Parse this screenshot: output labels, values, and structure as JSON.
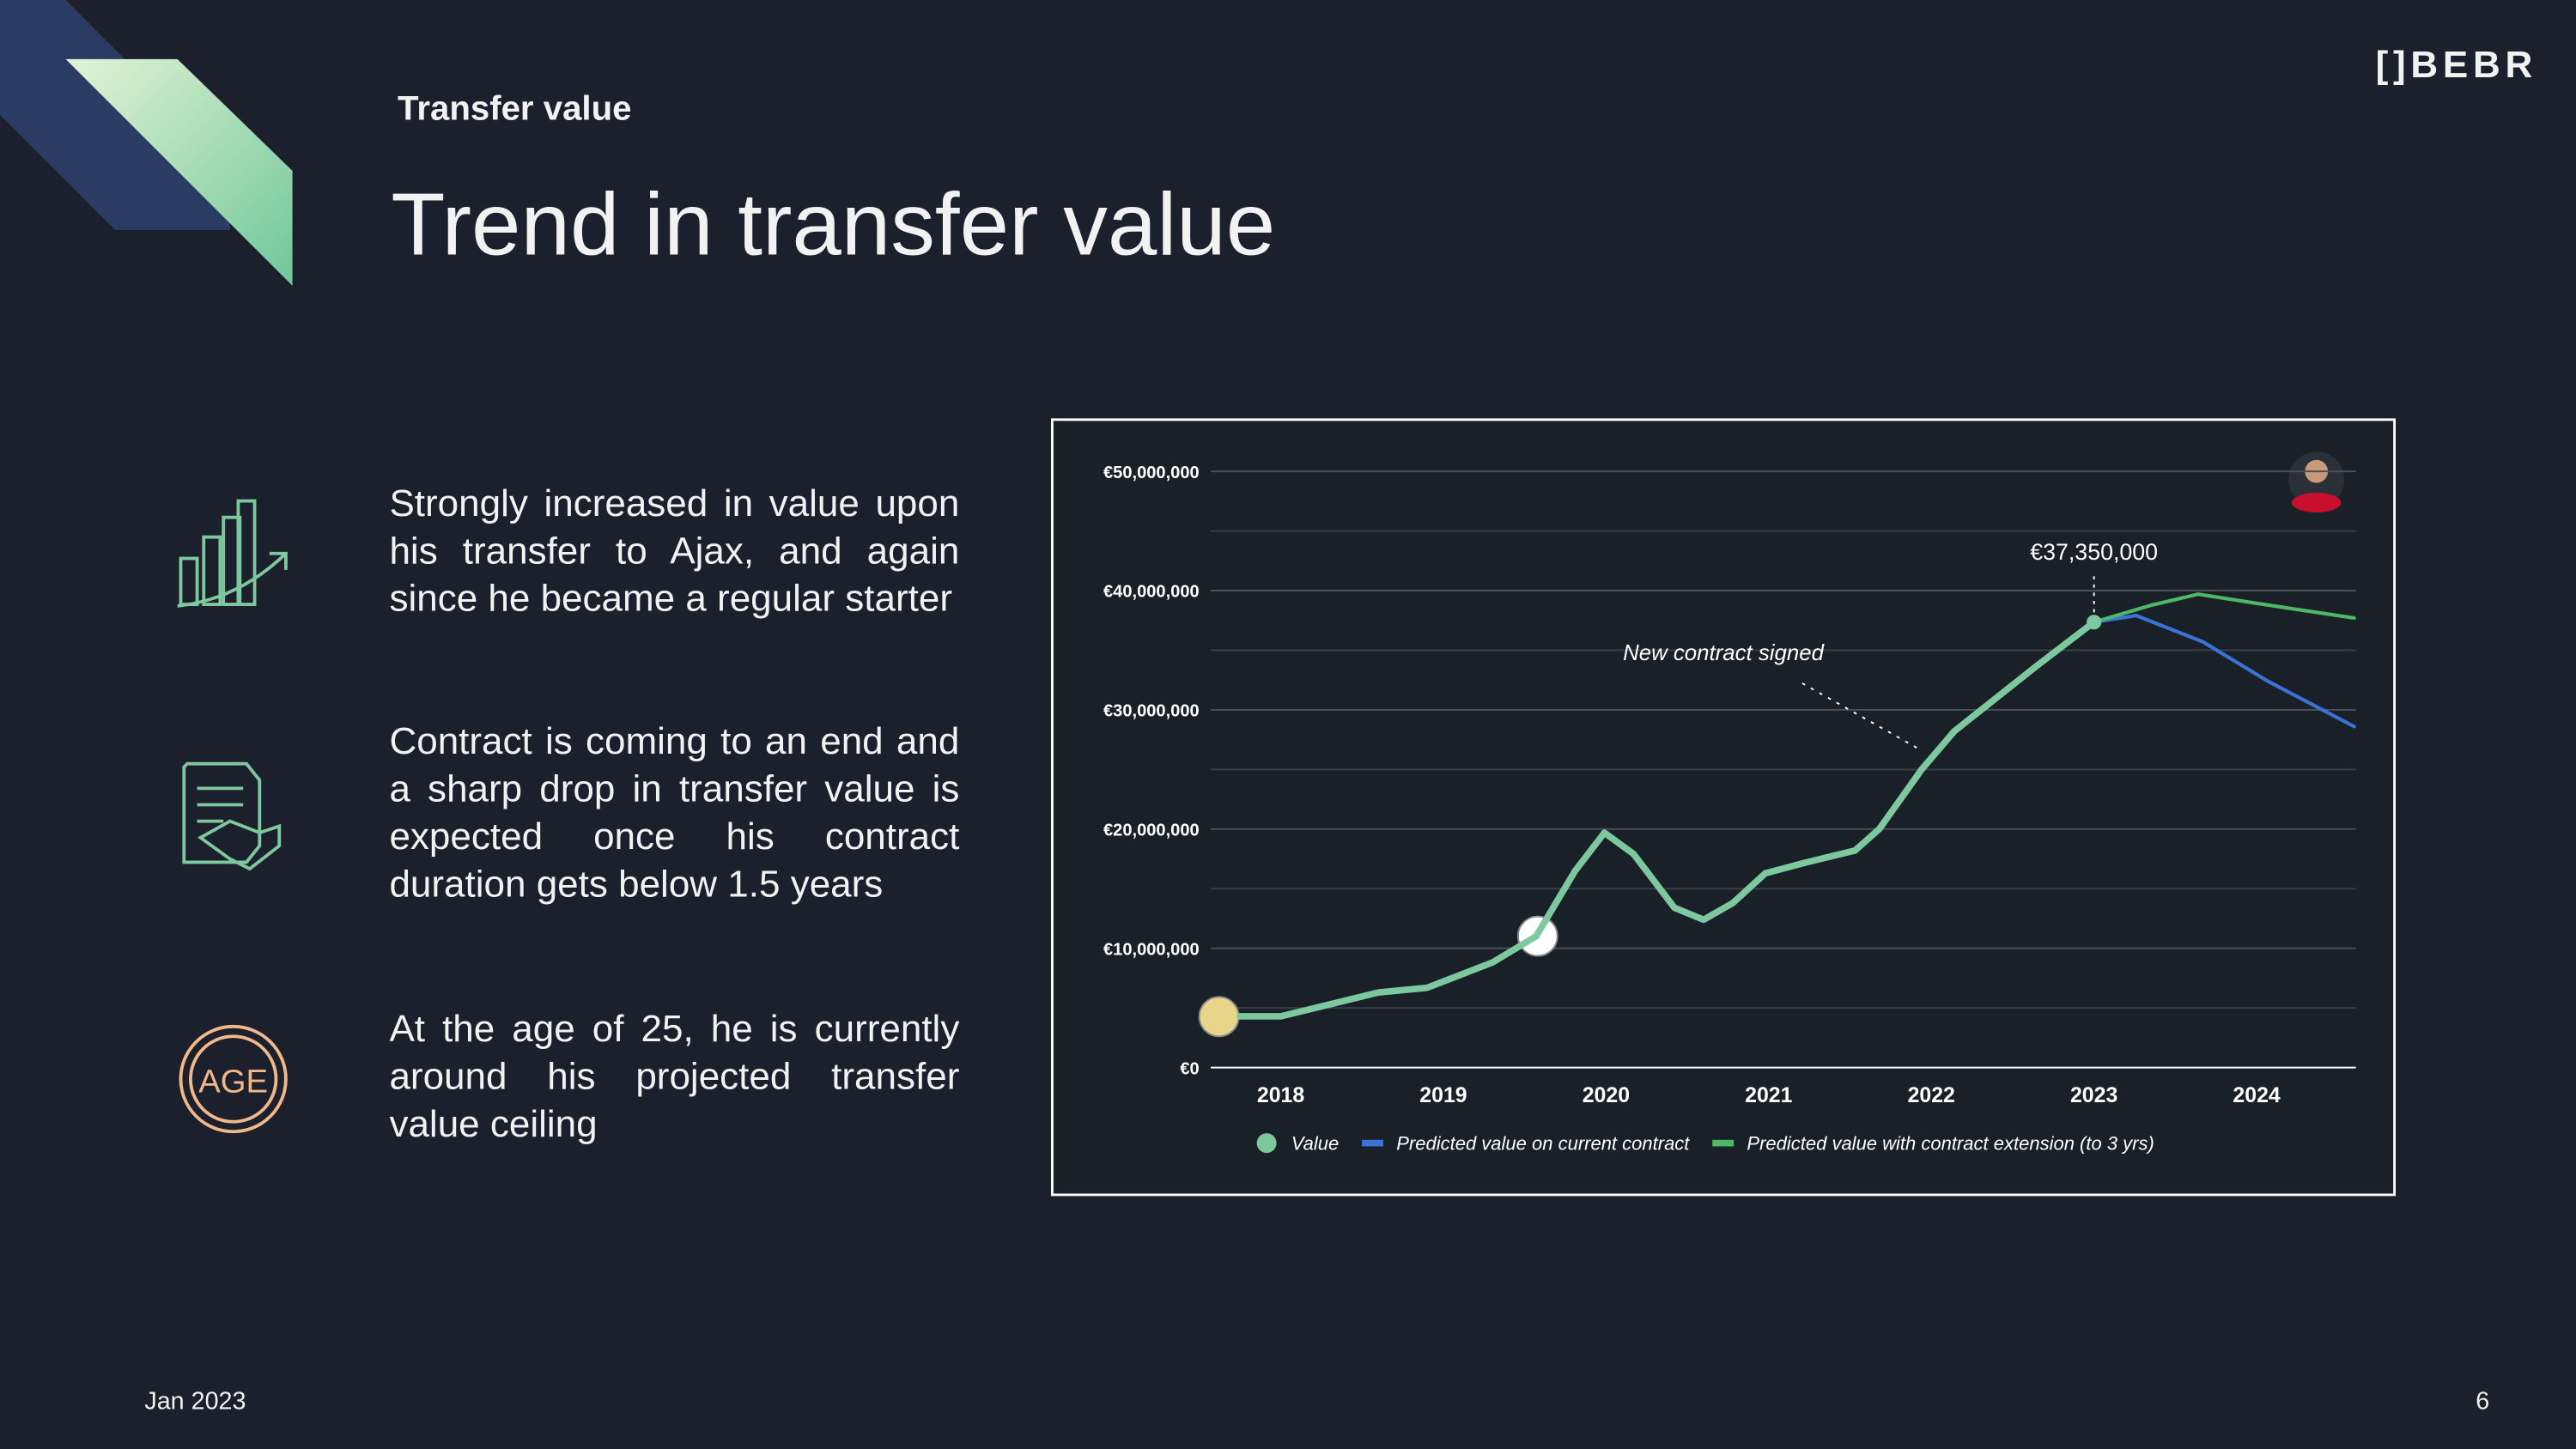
{
  "slide": {
    "section": "Transfer value",
    "heading": "Trend in transfer value",
    "brand": "[]BEBR",
    "date": "Jan 2023",
    "page": "6",
    "points": [
      "Strongly increased in value upon his transfer to Ajax, and again since he became a regular starter",
      "Contract is coming to an end and a sharp drop in transfer value is expected once his contract duration gets below 1.5 years",
      "At the age of 25, he is currently around his projected transfer value ceiling"
    ],
    "age_icon": "AGE"
  },
  "chart_data": {
    "type": "line",
    "xlim": [
      2017.57,
      2024.61
    ],
    "xticks": [
      2018,
      2019,
      2020,
      2021,
      2022,
      2023,
      2024
    ],
    "ylim": [
      0,
      50000000
    ],
    "yticks": [
      {
        "value": 0,
        "label": "€0"
      },
      {
        "value": 10000000,
        "label": "€10,000,000"
      },
      {
        "value": 20000000,
        "label": "€20,000,000"
      },
      {
        "value": 30000000,
        "label": "€30,000,000"
      },
      {
        "value": 40000000,
        "label": "€40,000,000"
      },
      {
        "value": 50000000,
        "label": "€50,000,000"
      }
    ],
    "yminor": [
      5000000,
      15000000,
      25000000,
      35000000,
      45000000
    ],
    "grid": true,
    "series": [
      {
        "name": "Value",
        "color": "#7ec8a0",
        "x": [
          2017.75,
          2018,
          2018.6,
          2018.9,
          2019.3,
          2019.57,
          2019.81,
          2019.99,
          2020.17,
          2020.42,
          2020.6,
          2020.78,
          2020.98,
          2021.23,
          2021.53,
          2021.68,
          2021.94,
          2022.14,
          2022.65,
          2023
        ],
        "values": [
          4300000,
          4300000,
          6300000,
          6700000,
          8800000,
          11000000,
          16500000,
          19700000,
          17900000,
          13400000,
          12400000,
          13800000,
          16300000,
          17200000,
          18200000,
          20000000,
          25000000,
          28200000,
          33700000,
          37350000
        ]
      },
      {
        "name": "Predicted value on current contract",
        "color": "#3a72d6",
        "x": [
          2023,
          2023.26,
          2023.67,
          2024.07,
          2024.6
        ],
        "values": [
          37350000,
          37900000,
          35700000,
          32400000,
          28600000
        ]
      },
      {
        "name": "Predicted value with contract extension (to 3 yrs)",
        "color": "#4fb868",
        "x": [
          2023,
          2023.36,
          2023.64,
          2023.97,
          2024.6
        ],
        "values": [
          37350000,
          38800000,
          39700000,
          39000000,
          37700000
        ]
      }
    ],
    "annotations": [
      "€37,350,000",
      "New contract signed"
    ]
  }
}
